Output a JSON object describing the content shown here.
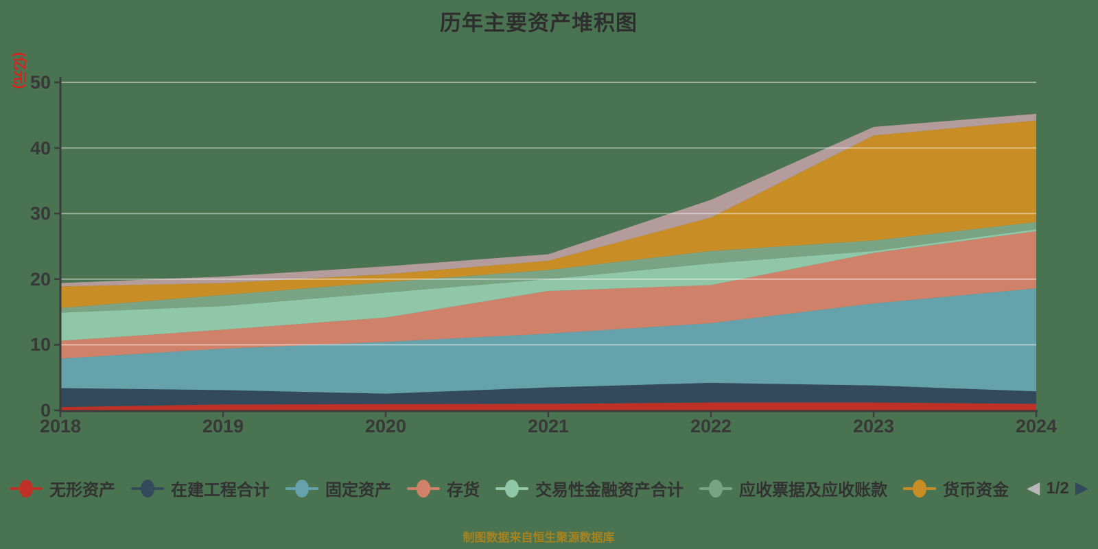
{
  "title": "历年主要资产堆积图",
  "y_axis": {
    "unit": "(亿元)",
    "ticks": [
      0,
      10,
      20,
      30,
      40,
      50
    ],
    "max": 50
  },
  "x_axis": {
    "categories": [
      "2018",
      "2019",
      "2020",
      "2021",
      "2022",
      "2023",
      "2024"
    ]
  },
  "legend": {
    "page_indicator": "1/2",
    "prev_icon": "◀",
    "next_icon": "▶",
    "prev_color": "#b8b8b8",
    "next_color": "#33495c"
  },
  "source_caption": "制图数据来自恒生聚源数据库",
  "colors": {
    "background": "#4a7351",
    "axis": "#3c3c3c",
    "gridline": "rgba(255,255,255,0.45)",
    "title_text": "#2e2e2e",
    "axis_text": "#383838",
    "unit_text": "#d42420",
    "caption_text": "#a8831d"
  },
  "chart_data": {
    "type": "area",
    "stacked": true,
    "title": "历年主要资产堆积图",
    "xlabel": "",
    "ylabel": "(亿元)",
    "ylim": [
      0,
      50
    ],
    "y_ticks": [
      0,
      10,
      20,
      30,
      40,
      50
    ],
    "grid": true,
    "legend_position": "bottom",
    "x": [
      "2018",
      "2019",
      "2020",
      "2021",
      "2022",
      "2023",
      "2024"
    ],
    "series": [
      {
        "name": "无形资产",
        "color": "#bf3127",
        "values": [
          0.5,
          0.9,
          0.95,
          1.0,
          1.2,
          1.2,
          1.0
        ]
      },
      {
        "name": "在建工程合计",
        "color": "#33495c",
        "values": [
          2.9,
          2.2,
          1.6,
          2.5,
          3.0,
          2.6,
          1.9
        ]
      },
      {
        "name": "固定资产",
        "color": "#65a2ac",
        "values": [
          4.5,
          6.3,
          7.9,
          8.2,
          9.1,
          12.5,
          15.7
        ]
      },
      {
        "name": "存货",
        "color": "#d0816a",
        "values": [
          2.7,
          2.9,
          3.7,
          6.5,
          5.8,
          7.7,
          8.7
        ]
      },
      {
        "name": "交易性金融资产合计",
        "color": "#8fc7a8",
        "values": [
          4.3,
          3.6,
          3.8,
          1.8,
          3.3,
          0.3,
          0.3
        ]
      },
      {
        "name": "应收票据及应收账款",
        "color": "#79a383",
        "values": [
          0.7,
          1.7,
          1.6,
          1.4,
          1.9,
          1.6,
          1.1
        ]
      },
      {
        "name": "货币资金",
        "color": "#c98d26",
        "values": [
          3.3,
          1.8,
          1.2,
          1.4,
          5.1,
          16.0,
          15.5
        ]
      },
      {
        "name": "",
        "color": "#b49c9c",
        "legend_visible": false,
        "values": [
          0.5,
          1.0,
          1.2,
          1.0,
          2.7,
          1.3,
          1.0
        ]
      }
    ]
  }
}
